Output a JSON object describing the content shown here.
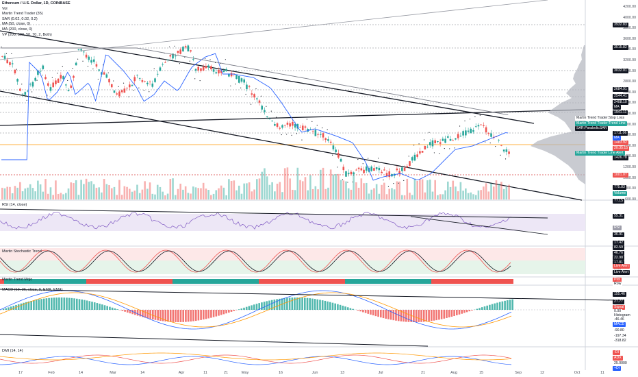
{
  "legend": {
    "title": "Ethereum / U.S. Dollar, 1D, COINBASE",
    "lines": [
      "Vol",
      "Martin Trend Trader (35)",
      "SAR (0.02, 0.02, 0.2)",
      "MA (50, close, 0)",
      "MA (200, close, 0)",
      "VP (200, 500, 50, 70, 2, Both)"
    ]
  },
  "panes": {
    "rsi": "RSI (14, close)",
    "stoch": "Martin Stochastic Trend",
    "trend": "Martin Trend Mojo",
    "macd": "MACD (12, 26, close, 9, EMA, EMA)",
    "dmi": "DMI (14, 14)"
  },
  "price_axis": [
    "4200.00",
    "4000.00",
    "3800.00",
    "3600.00",
    "3400.00",
    "3200.00",
    "3000.00",
    "2800.00",
    "2600.00",
    "2400.00",
    "2200.00",
    "2000.00",
    "1800.00",
    "1600.00",
    "1400.00",
    "1200.00",
    "1000.00",
    "800.00",
    "600.00"
  ],
  "price_tags": [
    {
      "text": "3932.83",
      "bg": "#131722",
      "fg": "#ffffff"
    },
    {
      "text": "3515.82",
      "bg": "#131722",
      "fg": "#ffffff"
    },
    {
      "text": "3032.01",
      "bg": "#131722",
      "fg": "#ffffff"
    },
    {
      "text": "2684.91",
      "bg": "#131722",
      "fg": "#ffffff"
    },
    {
      "text": "2544.41",
      "bg": "#131722",
      "fg": "#ffffff"
    },
    {
      "text": "2408.10",
      "bg": "#131722",
      "fg": "#ffffff"
    },
    {
      "text": "MA",
      "bg": "#131722",
      "fg": "#ffffff"
    },
    {
      "text": "1941.11",
      "bg": "#131722",
      "fg": "#ffffff"
    },
    {
      "text": "Martin Trend Trader:Stop Loss",
      "bg": "#ffffff",
      "fg": "#131722"
    },
    {
      "text": "Martin Trend Trader:Trend Line",
      "bg": "#26a69a",
      "fg": "#ffffff"
    },
    {
      "text": "SAR:ParabolicSAR",
      "bg": "#131722",
      "fg": "#ffffff"
    },
    {
      "text": "1711.06",
      "bg": "#131722",
      "fg": "#ffffff"
    },
    {
      "text": "MA",
      "bg": "#2962ff",
      "fg": "#ffffff"
    },
    {
      "text": "1483.92",
      "bg": "#ef5350",
      "fg": "#ffffff"
    },
    {
      "text": "20:35:15",
      "bg": "#ef5350",
      "fg": "#ffffff"
    },
    {
      "text": "1426.78",
      "bg": "#131722",
      "fg": "#ffffff"
    },
    {
      "text": "Martin Trend Trader:Line Alert",
      "bg": "#26a69a",
      "fg": "#ffffff"
    },
    {
      "text": "1001.07",
      "bg": "#ef5350",
      "fg": "#ffffff"
    },
    {
      "text": "775.83",
      "bg": "#131722",
      "fg": "#ffffff"
    },
    {
      "text": "Volume",
      "bg": "#26a69a",
      "fg": "#ffffff"
    },
    {
      "text": "77.15",
      "bg": "#131722",
      "fg": "#ffffff"
    }
  ],
  "rsi_tags": [
    {
      "text": "55.31",
      "bg": "#131722",
      "fg": "#ffffff"
    },
    {
      "text": "RSI",
      "bg": "#9c9ca8",
      "fg": "#ffffff"
    },
    {
      "text": "36.91",
      "bg": "#131722",
      "fg": "#ffffff"
    }
  ],
  "stoch_tags": [
    {
      "text": "17.42",
      "bg": "#131722",
      "fg": "#ffffff"
    },
    {
      "text": "82.59",
      "bg": "#131722",
      "fg": "#ffffff"
    },
    {
      "text": "46.76",
      "bg": "#131722",
      "fg": "#ffffff"
    },
    {
      "text": "22.98",
      "bg": "#131722",
      "fg": "#ffffff"
    },
    {
      "text": "17.81",
      "bg": "#131722",
      "fg": "#ffffff"
    },
    {
      "text": "0.00",
      "bg": "#ffffff",
      "fg": "#131722"
    },
    {
      "text": "Live Alert",
      "bg": "#ef5350",
      "fg": "#ffffff"
    },
    {
      "text": "Live Alert",
      "bg": "#131722",
      "fg": "#ffffff"
    }
  ],
  "trend_tags": [
    {
      "text": "Plot",
      "bg": "#ef5350",
      "fg": "#ffffff"
    },
    {
      "text": "Row",
      "bg": "#ffffff",
      "fg": "#131722"
    }
  ],
  "macd_tags": [
    {
      "text": "155.46",
      "bg": "#131722",
      "fg": "#ffffff"
    },
    {
      "text": "27.77",
      "bg": "#131722",
      "fg": "#ffffff"
    },
    {
      "text": "Signal",
      "bg": "#ef5350",
      "fg": "#ffffff"
    },
    {
      "text": "0.00",
      "bg": "#ffffff",
      "fg": "#131722"
    },
    {
      "text": "Histogram",
      "bg": "#ffffff",
      "fg": "#131722"
    },
    {
      "text": "-46.46",
      "bg": "#ffffff",
      "fg": "#131722"
    },
    {
      "text": "MACD",
      "bg": "#2962ff",
      "fg": "#ffffff"
    },
    {
      "text": "-90.80",
      "bg": "#ffffff",
      "fg": "#131722"
    },
    {
      "text": "-197.34",
      "bg": "#ffffff",
      "fg": "#131722"
    },
    {
      "text": "-318.82",
      "bg": "#ffffff",
      "fg": "#131722"
    }
  ],
  "dmi_tags": [
    {
      "text": "-DI",
      "bg": "#ef5350",
      "fg": "#ffffff"
    },
    {
      "text": "ADX",
      "bg": "#ef5350",
      "fg": "#ffffff"
    },
    {
      "text": "25.0000",
      "bg": "#ffffff",
      "fg": "#131722"
    },
    {
      "text": "+DI",
      "bg": "#2962ff",
      "fg": "#ffffff"
    }
  ],
  "time_axis": [
    "17",
    "Feb",
    "14",
    "Mar",
    "14",
    "Apr",
    "11",
    "21",
    "May",
    "16",
    "Jun",
    "13",
    "Jul",
    "21",
    "Aug",
    "15",
    "Sep",
    "12",
    "Oct",
    "11"
  ],
  "colors": {
    "up": "#26a69a",
    "down": "#ef5350",
    "ma50": "#2962ff",
    "ma200": "#131722",
    "vp": "#b2b5be",
    "rsi_band": "#ede7f6",
    "stoch_top": "#fde8e8",
    "stoch_bot": "#e6f4ea"
  }
}
